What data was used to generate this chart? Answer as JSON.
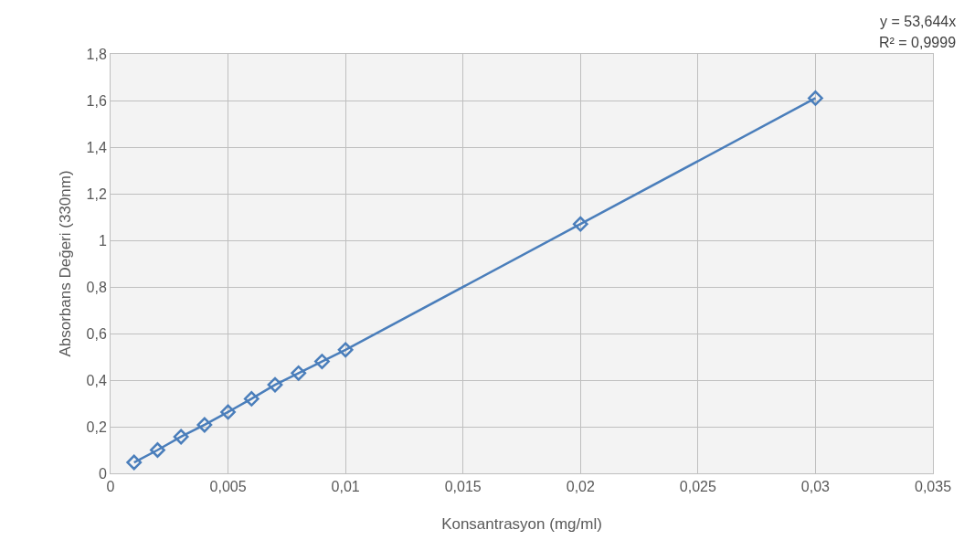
{
  "chart_data": {
    "type": "line",
    "xlabel": "Konsantrasyon (mg/ml)",
    "ylabel": "Absorbans Değeri (330nm)",
    "x": [
      0.001,
      0.002,
      0.003,
      0.004,
      0.005,
      0.006,
      0.007,
      0.008,
      0.009,
      0.01,
      0.02,
      0.03
    ],
    "series": [
      {
        "color": "#4a7ebb",
        "values": [
          0.047,
          0.1,
          0.157,
          0.208,
          0.263,
          0.32,
          0.38,
          0.43,
          0.48,
          0.53,
          1.07,
          1.61
        ]
      }
    ],
    "xlim": [
      0,
      0.035
    ],
    "xticks": [
      0,
      {
        "value": 0.005,
        "label": "0,005"
      },
      {
        "value": 0.01,
        "label": "0,01"
      },
      {
        "value": 0.015,
        "label": "0,015"
      },
      {
        "value": 0.02,
        "label": "0,02"
      },
      {
        "value": 0.025,
        "label": "0,025"
      },
      {
        "value": 0.03,
        "label": "0,03"
      },
      {
        "value": 0.035,
        "label": "0,035"
      }
    ],
    "ylim": [
      0,
      1.8
    ],
    "yticks": [
      0,
      {
        "value": 0.2,
        "label": "0,2"
      },
      {
        "value": 0.4,
        "label": "0,4"
      },
      {
        "value": 0.6,
        "label": "0,6"
      },
      {
        "value": 0.8,
        "label": "0,8"
      },
      1,
      {
        "value": 1.2,
        "label": "1,2"
      },
      {
        "value": 1.4,
        "label": "1,4"
      },
      {
        "value": 1.6,
        "label": "1,6"
      },
      {
        "value": 1.8,
        "label": "1,8"
      }
    ],
    "annotations": [
      "y = 53,644x",
      "R² = 0,9999"
    ],
    "grid": true,
    "marker": "diamond",
    "line_style": "solid"
  }
}
